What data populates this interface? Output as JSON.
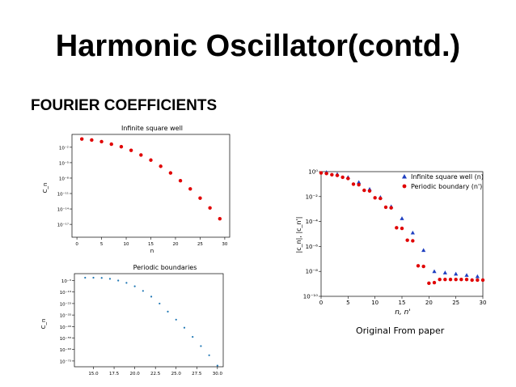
{
  "slide": {
    "title": "Harmonic Oscillator(contd.)",
    "subtitle": "FOURIER COEFFICIENTS",
    "caption": "Original From paper"
  },
  "chart_data": [
    {
      "type": "scatter",
      "title": "Infinite square well",
      "xlabel": "n",
      "ylabel": "C_n",
      "yscale": "log",
      "xlim": [
        -1,
        31
      ],
      "ylim_exp": [
        -19.5,
        0.5
      ],
      "xticks": [
        0,
        5,
        10,
        15,
        20,
        25,
        30
      ],
      "yticks": [
        {
          "exp": -2,
          "label": "10⁻²"
        },
        {
          "exp": -5,
          "label": "10⁻⁵"
        },
        {
          "exp": -8,
          "label": "10⁻⁸"
        },
        {
          "exp": -11,
          "label": "10⁻¹¹"
        },
        {
          "exp": -14,
          "label": "10⁻¹⁴"
        },
        {
          "exp": -17,
          "label": "10⁻¹⁷"
        }
      ],
      "grid": false,
      "color": "#e00000",
      "series": [
        {
          "x": [
            1,
            3,
            5,
            7,
            9,
            11,
            13,
            15,
            17,
            19,
            21,
            23,
            25,
            27,
            29
          ],
          "y_exp": [
            -0.4,
            -0.6,
            -0.9,
            -1.4,
            -1.9,
            -2.6,
            -3.5,
            -4.5,
            -5.7,
            -7.0,
            -8.5,
            -10.1,
            -11.9,
            -13.8,
            -15.9
          ]
        }
      ]
    },
    {
      "type": "scatter",
      "title": "Periodic boundaries",
      "xlabel": "",
      "ylabel": "C_n",
      "yscale": "log",
      "xlim": [
        12.7,
        30.7
      ],
      "ylim_exp": [
        -78,
        3
      ],
      "xticks": [
        15,
        17.5,
        20,
        22.5,
        25,
        27.5,
        30
      ],
      "xticklabels": [
        "15.0",
        "17.5",
        "20.0",
        "22.5",
        "25.0",
        "27.5",
        "30.0"
      ],
      "yticks": [
        {
          "exp": -3,
          "label": "10⁻³"
        },
        {
          "exp": -13,
          "label": "10⁻¹³"
        },
        {
          "exp": -23,
          "label": "10⁻²³"
        },
        {
          "exp": -33,
          "label": "10⁻³³"
        },
        {
          "exp": -43,
          "label": "10⁻⁴³"
        },
        {
          "exp": -53,
          "label": "10⁻⁵³"
        },
        {
          "exp": -63,
          "label": "10⁻⁶³"
        },
        {
          "exp": -73,
          "label": "10⁻⁷³"
        }
      ],
      "grid": false,
      "color": "#1f77b4",
      "series": [
        {
          "x": [
            14,
            15,
            16,
            17,
            18,
            19,
            20,
            21,
            22,
            23,
            24,
            25,
            26,
            27,
            28,
            29,
            30
          ],
          "y_exp": [
            -0.5,
            -0.5,
            -0.7,
            -1.5,
            -3,
            -5,
            -8,
            -12,
            -17,
            -23,
            -30,
            -37,
            -44,
            -52,
            -60,
            -68,
            -77
          ]
        }
      ]
    },
    {
      "type": "scatter",
      "title": "",
      "xlabel": "n, n'",
      "ylabel": "|c_n|, |c_n'|",
      "yscale": "log",
      "xlim": [
        0,
        30
      ],
      "ylim_exp": [
        -10,
        0
      ],
      "xticks": [
        0,
        5,
        10,
        15,
        20,
        25,
        30
      ],
      "yticks": [
        {
          "exp": 0,
          "label": "10⁰"
        },
        {
          "exp": -2,
          "label": "10⁻²"
        },
        {
          "exp": -4,
          "label": "10⁻⁴"
        },
        {
          "exp": -6,
          "label": "10⁻⁶"
        },
        {
          "exp": -8,
          "label": "10⁻⁸"
        },
        {
          "exp": -10,
          "label": "10⁻¹⁰"
        }
      ],
      "grid": false,
      "legend_position": "top-right",
      "series": [
        {
          "name": "Infinite square well (n)",
          "marker": "triangle",
          "color": "#1f3fc0",
          "x": [
            1,
            3,
            5,
            7,
            9,
            11,
            13,
            15,
            17,
            19,
            21,
            23,
            25,
            27,
            29
          ],
          "y_exp": [
            -0.05,
            -0.2,
            -0.45,
            -0.85,
            -1.4,
            -2.05,
            -2.8,
            -3.75,
            -4.9,
            -6.3,
            -8.0,
            -8.1,
            -8.2,
            -8.3,
            -8.4
          ]
        },
        {
          "name": "Periodic boundary (n')",
          "marker": "circle",
          "color": "#e00000",
          "x": [
            0,
            1,
            2,
            3,
            4,
            5,
            6,
            7,
            8,
            9,
            10,
            11,
            12,
            13,
            14,
            15,
            16,
            17,
            18,
            19,
            20,
            21,
            22,
            23,
            24,
            25,
            26,
            27,
            28,
            29,
            30
          ],
          "y_exp": [
            -0.1,
            -0.15,
            -0.25,
            -0.3,
            -0.45,
            -0.55,
            -1.0,
            -1.05,
            -1.5,
            -1.55,
            -2.1,
            -2.15,
            -2.85,
            -2.9,
            -4.5,
            -4.55,
            -5.5,
            -5.55,
            -7.55,
            -7.6,
            -8.95,
            -8.9,
            -8.65,
            -8.65,
            -8.65,
            -8.65,
            -8.65,
            -8.65,
            -8.7,
            -8.7,
            -8.7
          ]
        }
      ]
    }
  ]
}
